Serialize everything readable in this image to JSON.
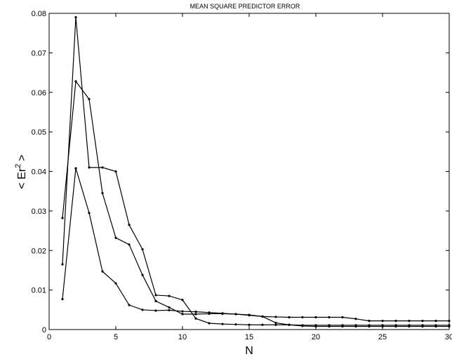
{
  "chart_data": {
    "type": "line",
    "title": "MEAN SQUARE PREDICTOR ERROR",
    "xlabel": "N",
    "ylabel": "< Er",
    "ylabel_superscript": "2",
    "ylabel_suffix": ">",
    "xlim": [
      0,
      30
    ],
    "ylim": [
      0,
      0.08
    ],
    "xticks": [
      "0",
      "5",
      "10",
      "15",
      "20",
      "25",
      "30"
    ],
    "yticks": [
      "0",
      "0.01",
      "0.02",
      "0.03",
      "0.04",
      "0.05",
      "0.06",
      "0.07",
      "0.08"
    ],
    "grid": false,
    "line_color": "#000000",
    "series": [
      {
        "x": [
          1,
          2,
          3,
          4,
          5,
          6,
          7,
          8,
          9,
          10,
          11,
          12,
          13,
          14,
          15,
          16,
          17,
          18,
          19,
          20,
          21,
          22,
          23,
          24,
          25,
          26,
          27,
          28,
          29,
          30
        ],
        "values": [
          0.0165,
          0.079,
          0.041,
          0.041,
          0.04,
          0.0265,
          0.0203,
          0.0087,
          0.0085,
          0.0075,
          0.0028,
          0.0016,
          0.0014,
          0.0013,
          0.0012,
          0.0012,
          0.0012,
          0.0012,
          0.0011,
          0.0011,
          0.0011,
          0.0011,
          0.0011,
          0.0011,
          0.0011,
          0.0011,
          0.0011,
          0.0011,
          0.0011,
          0.0011
        ]
      },
      {
        "x": [
          1,
          2,
          3,
          4,
          5,
          6,
          7,
          8,
          9,
          10,
          11,
          12,
          13,
          14,
          15,
          16,
          17,
          18,
          19,
          20,
          21,
          22,
          23,
          24,
          25,
          26,
          27,
          28,
          29,
          30
        ],
        "values": [
          0.0282,
          0.0628,
          0.0583,
          0.0345,
          0.0232,
          0.0215,
          0.0138,
          0.0072,
          0.0056,
          0.0039,
          0.0039,
          0.004,
          0.004,
          0.0039,
          0.0037,
          0.0033,
          0.0017,
          0.0012,
          0.0009,
          0.0008,
          0.0008,
          0.0008,
          0.0008,
          0.0008,
          0.0008,
          0.0008,
          0.0008,
          0.0008,
          0.0008,
          0.0008
        ]
      },
      {
        "x": [
          1,
          2,
          3,
          4,
          5,
          6,
          7,
          8,
          9,
          10,
          11,
          12,
          13,
          14,
          15,
          16,
          17,
          18,
          19,
          20,
          21,
          22,
          23,
          24,
          25,
          26,
          27,
          28,
          29,
          30
        ],
        "values": [
          0.0077,
          0.0408,
          0.0295,
          0.0147,
          0.0117,
          0.0062,
          0.005,
          0.0048,
          0.0049,
          0.0046,
          0.0045,
          0.0043,
          0.0041,
          0.0039,
          0.0036,
          0.0033,
          0.0032,
          0.0031,
          0.0031,
          0.0031,
          0.0031,
          0.0031,
          0.0027,
          0.0022,
          0.0022,
          0.0022,
          0.0022,
          0.0022,
          0.0022,
          0.0022
        ]
      }
    ]
  }
}
